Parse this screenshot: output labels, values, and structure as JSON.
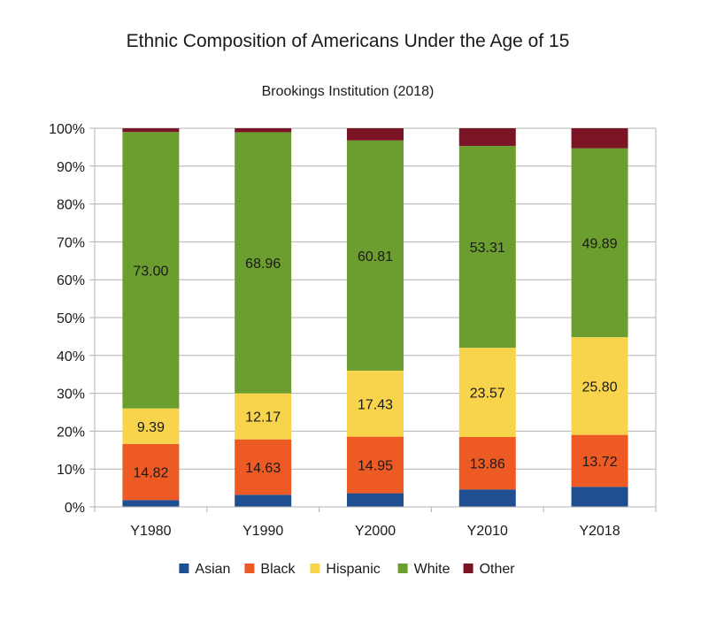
{
  "chart_data": {
    "type": "bar",
    "stacked": true,
    "percent_stacked": true,
    "title": "Ethnic Composition of Americans Under the Age of 15",
    "subtitle": "Brookings Institution (2018)",
    "xlabel": "",
    "ylabel": "",
    "ylim": [
      0,
      100
    ],
    "y_ticks": [
      "0%",
      "10%",
      "20%",
      "30%",
      "40%",
      "50%",
      "60%",
      "70%",
      "80%",
      "90%",
      "100%"
    ],
    "categories": [
      "Y1980",
      "Y1990",
      "Y2000",
      "Y2010",
      "Y2018"
    ],
    "grid": true,
    "legend_position": "bottom",
    "series": [
      {
        "name": "Asian",
        "color": "#1f4e91",
        "values": [
          1.8,
          3.2,
          3.6,
          4.6,
          5.3
        ],
        "labels": [
          "",
          "",
          "",
          "",
          ""
        ]
      },
      {
        "name": "Black",
        "color": "#ee5a24",
        "values": [
          14.82,
          14.63,
          14.95,
          13.86,
          13.72
        ],
        "labels": [
          "14.82",
          "14.63",
          "14.95",
          "13.86",
          "13.72"
        ]
      },
      {
        "name": "Hispanic",
        "color": "#f8d44c",
        "values": [
          9.39,
          12.17,
          17.43,
          23.57,
          25.8
        ],
        "labels": [
          "9.39",
          "12.17",
          "17.43",
          "23.57",
          "25.80"
        ]
      },
      {
        "name": "White",
        "color": "#6b9e2e",
        "values": [
          73.0,
          68.96,
          60.81,
          53.31,
          49.89
        ],
        "labels": [
          "73.00",
          "68.96",
          "60.81",
          "53.31",
          "49.89"
        ]
      },
      {
        "name": "Other",
        "color": "#7b1526",
        "values": [
          0.99,
          1.04,
          3.21,
          4.66,
          5.29
        ],
        "labels": [
          "",
          "",
          "",
          "",
          ""
        ]
      }
    ]
  }
}
